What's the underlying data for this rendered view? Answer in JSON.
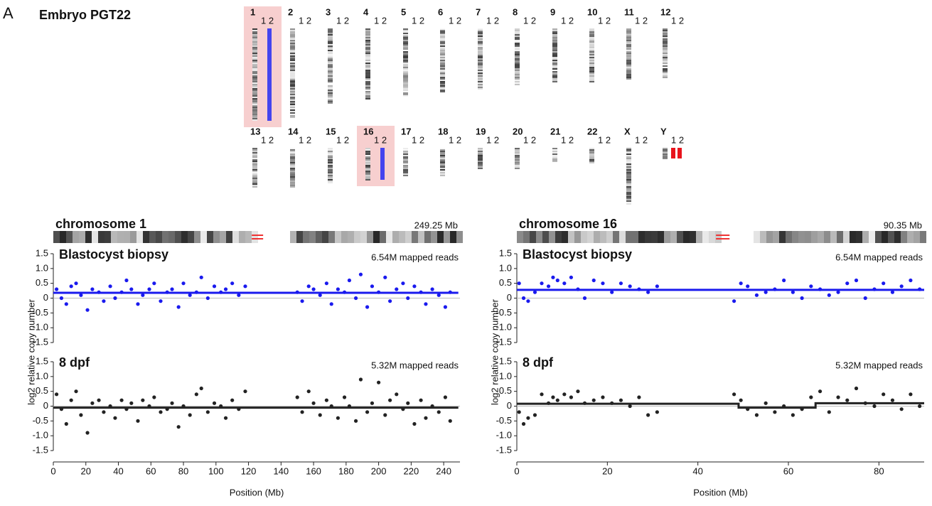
{
  "panel_label": "A",
  "karyotype": {
    "title": "Embryo PGT22",
    "chromosomes": [
      {
        "name": "1",
        "copies": "1 2",
        "highlight": true,
        "marker": "#4444ee",
        "marker_copies": [
          2
        ]
      },
      {
        "name": "2",
        "copies": "1 2"
      },
      {
        "name": "3",
        "copies": "1 2"
      },
      {
        "name": "4",
        "copies": "1 2"
      },
      {
        "name": "5",
        "copies": "1 2"
      },
      {
        "name": "6",
        "copies": "1 2"
      },
      {
        "name": "7",
        "copies": "1 2"
      },
      {
        "name": "8",
        "copies": "1 2"
      },
      {
        "name": "9",
        "copies": "1 2"
      },
      {
        "name": "10",
        "copies": "1 2"
      },
      {
        "name": "11",
        "copies": "1 2"
      },
      {
        "name": "12",
        "copies": "1 2"
      },
      {
        "name": "13",
        "copies": "1 2"
      },
      {
        "name": "14",
        "copies": "1 2"
      },
      {
        "name": "15",
        "copies": "1 2"
      },
      {
        "name": "16",
        "copies": "1 2",
        "highlight": true,
        "marker": "#4444ee",
        "marker_copies": [
          2
        ]
      },
      {
        "name": "17",
        "copies": "1 2"
      },
      {
        "name": "18",
        "copies": "1 2"
      },
      {
        "name": "19",
        "copies": "1 2"
      },
      {
        "name": "20",
        "copies": "1 2"
      },
      {
        "name": "21",
        "copies": "1 2"
      },
      {
        "name": "22",
        "copies": "1 2"
      },
      {
        "name": "X",
        "copies": "1 2"
      },
      {
        "name": "Y",
        "copies": "1 2",
        "marker": "#e8141c",
        "marker_copies": [
          1,
          2
        ]
      }
    ]
  },
  "chart_data": [
    {
      "type": "scatter",
      "chromosome_title": "chromosome 1",
      "length_label": "249.25 Mb",
      "title": "Blastocyst biopsy",
      "annotation": "6.54M mapped reads",
      "ylabel": "log2 relative copy number",
      "color": "#1a1aee",
      "xlim": [
        0,
        250
      ],
      "ylim": [
        -1.5,
        1.5
      ],
      "zero_line": true,
      "yticks": [
        {
          "value": 1.5,
          "label": "1.5"
        },
        {
          "value": 1,
          "label": "1.0"
        },
        0.5,
        0,
        -0.5,
        {
          "value": -1,
          "label": "-1.0"
        },
        -1.5
      ],
      "x": [
        2,
        5,
        8,
        11,
        14,
        17,
        21,
        24,
        28,
        31,
        35,
        38,
        42,
        45,
        48,
        52,
        55,
        59,
        62,
        66,
        70,
        73,
        77,
        80,
        84,
        88,
        91,
        95,
        99,
        103,
        106,
        110,
        114,
        118,
        150,
        153,
        157,
        160,
        164,
        168,
        171,
        175,
        179,
        182,
        186,
        189,
        193,
        196,
        200,
        204,
        207,
        211,
        215,
        218,
        222,
        226,
        229,
        233,
        237,
        241,
        244
      ],
      "y": [
        0.3,
        0.0,
        -0.2,
        0.4,
        0.5,
        0.1,
        -0.4,
        0.3,
        0.2,
        -0.1,
        0.4,
        0.0,
        0.2,
        0.6,
        0.3,
        -0.2,
        0.1,
        0.3,
        0.5,
        -0.1,
        0.2,
        0.3,
        -0.3,
        0.5,
        0.1,
        0.2,
        0.7,
        0.0,
        0.4,
        0.2,
        0.3,
        0.5,
        0.1,
        0.4,
        0.2,
        -0.1,
        0.4,
        0.3,
        0.1,
        0.5,
        -0.2,
        0.3,
        0.2,
        0.6,
        0.0,
        0.8,
        -0.3,
        0.4,
        0.2,
        0.7,
        -0.1,
        0.3,
        0.5,
        0.0,
        0.4,
        0.2,
        -0.2,
        0.3,
        0.1,
        -0.3,
        0.2
      ],
      "fit_x": [
        0,
        249
      ],
      "fit_y": [
        0.18,
        0.18
      ]
    },
    {
      "type": "scatter",
      "title": "8 dpf",
      "annotation": "5.32M mapped reads",
      "xlabel": "Position (Mb)",
      "color": "#222222",
      "xlim": [
        0,
        250
      ],
      "ylim": [
        -1.5,
        1.5
      ],
      "zero_line": true,
      "xticks": [
        0,
        20,
        40,
        60,
        80,
        100,
        120,
        140,
        160,
        180,
        200,
        220,
        240
      ],
      "yticks": [
        {
          "value": 1.5,
          "label": "1.5"
        },
        {
          "value": 1,
          "label": "1.0"
        },
        0.5,
        0,
        -0.5,
        {
          "value": -1,
          "label": "-1.0"
        },
        -1.5
      ],
      "x": [
        2,
        5,
        8,
        11,
        14,
        17,
        21,
        24,
        28,
        31,
        35,
        38,
        42,
        45,
        48,
        52,
        55,
        59,
        62,
        66,
        70,
        73,
        77,
        80,
        84,
        88,
        91,
        95,
        99,
        103,
        106,
        110,
        114,
        118,
        150,
        153,
        157,
        160,
        164,
        168,
        171,
        175,
        179,
        182,
        186,
        189,
        193,
        196,
        200,
        204,
        207,
        211,
        215,
        218,
        222,
        226,
        229,
        233,
        237,
        241,
        244
      ],
      "y": [
        0.4,
        -0.1,
        -0.6,
        0.2,
        0.5,
        -0.3,
        -0.9,
        0.1,
        0.2,
        -0.2,
        0.0,
        -0.4,
        0.2,
        -0.1,
        0.1,
        -0.5,
        0.2,
        0.0,
        0.3,
        -0.2,
        -0.1,
        0.1,
        -0.7,
        0.0,
        -0.3,
        0.4,
        0.6,
        -0.2,
        0.1,
        0.0,
        -0.4,
        0.2,
        -0.1,
        0.5,
        0.3,
        -0.2,
        0.5,
        0.1,
        -0.3,
        0.2,
        0.0,
        -0.4,
        0.3,
        0.0,
        -0.5,
        0.9,
        -0.2,
        0.1,
        0.8,
        -0.3,
        0.2,
        0.4,
        -0.1,
        0.1,
        -0.6,
        0.2,
        -0.4,
        0.0,
        -0.2,
        0.3,
        -0.5
      ],
      "fit_x": [
        0,
        249
      ],
      "fit_y": [
        -0.05,
        -0.05
      ]
    },
    {
      "type": "scatter",
      "chromosome_title": "chromosome 16",
      "length_label": "90.35 Mb",
      "title": "Blastocyst biopsy",
      "annotation": "6.54M mapped reads",
      "ylabel": "log2 relative copy number",
      "color": "#1a1aee",
      "xlim": [
        0,
        90
      ],
      "ylim": [
        -1.5,
        1.5
      ],
      "zero_line": true,
      "yticks": [
        {
          "value": 1.5,
          "label": "1.5"
        },
        {
          "value": 1,
          "label": "1.0"
        },
        0.5,
        0,
        -0.5,
        {
          "value": -1,
          "label": "-1.0"
        },
        -1.5
      ],
      "x": [
        0.5,
        1.5,
        2.5,
        4,
        5.5,
        7,
        8,
        9,
        10.5,
        12,
        13.5,
        15,
        17,
        19,
        21,
        23,
        25,
        27,
        29,
        31,
        48,
        49.5,
        51,
        53,
        55,
        57,
        59,
        61,
        63,
        65,
        67,
        69,
        71,
        73,
        75,
        77,
        79,
        81,
        83,
        85,
        87,
        89
      ],
      "y": [
        0.5,
        0.0,
        -0.1,
        0.2,
        0.5,
        0.4,
        0.7,
        0.6,
        0.5,
        0.7,
        0.3,
        0.0,
        0.6,
        0.5,
        0.2,
        0.5,
        0.4,
        0.3,
        0.2,
        0.4,
        -0.1,
        0.5,
        0.4,
        0.1,
        0.2,
        0.3,
        0.6,
        0.2,
        0.0,
        0.4,
        0.3,
        0.1,
        0.2,
        0.5,
        0.6,
        0.0,
        0.3,
        0.5,
        0.2,
        0.4,
        0.6,
        0.3
      ],
      "fit_x": [
        0,
        90
      ],
      "fit_y": [
        0.28,
        0.28
      ]
    },
    {
      "type": "scatter",
      "title": "8 dpf",
      "annotation": "5.32M mapped reads",
      "xlabel": "Position (Mb)",
      "color": "#222222",
      "xlim": [
        0,
        90
      ],
      "ylim": [
        -1.5,
        1.5
      ],
      "zero_line": true,
      "xticks": [
        0,
        20,
        40,
        60,
        80
      ],
      "yticks": [
        {
          "value": 1.5,
          "label": "1.5"
        },
        {
          "value": 1,
          "label": "1.0"
        },
        0.5,
        0,
        -0.5,
        {
          "value": -1,
          "label": "-1.0"
        },
        -1.5
      ],
      "x": [
        0.5,
        1.5,
        2.5,
        4,
        5.5,
        7,
        8,
        9,
        10.5,
        12,
        13.5,
        15,
        17,
        19,
        21,
        23,
        25,
        27,
        29,
        31,
        48,
        49.5,
        51,
        53,
        55,
        57,
        59,
        61,
        63,
        65,
        67,
        69,
        71,
        73,
        75,
        77,
        79,
        81,
        83,
        85,
        87,
        89
      ],
      "y": [
        -0.2,
        -0.6,
        -0.4,
        -0.3,
        0.4,
        0.1,
        0.3,
        0.2,
        0.4,
        0.3,
        0.5,
        0.1,
        0.2,
        0.3,
        0.1,
        0.2,
        0.0,
        0.3,
        -0.3,
        -0.2,
        0.4,
        0.2,
        -0.1,
        -0.3,
        0.1,
        -0.2,
        0.0,
        -0.3,
        -0.1,
        0.3,
        0.5,
        -0.2,
        0.3,
        0.2,
        0.6,
        0.1,
        0.0,
        0.4,
        0.2,
        -0.1,
        0.4,
        0.0
      ],
      "fit_x": [
        0,
        49,
        49,
        66,
        66,
        90
      ],
      "fit_y": [
        0.08,
        0.08,
        -0.05,
        -0.05,
        0.1,
        0.1
      ]
    }
  ]
}
